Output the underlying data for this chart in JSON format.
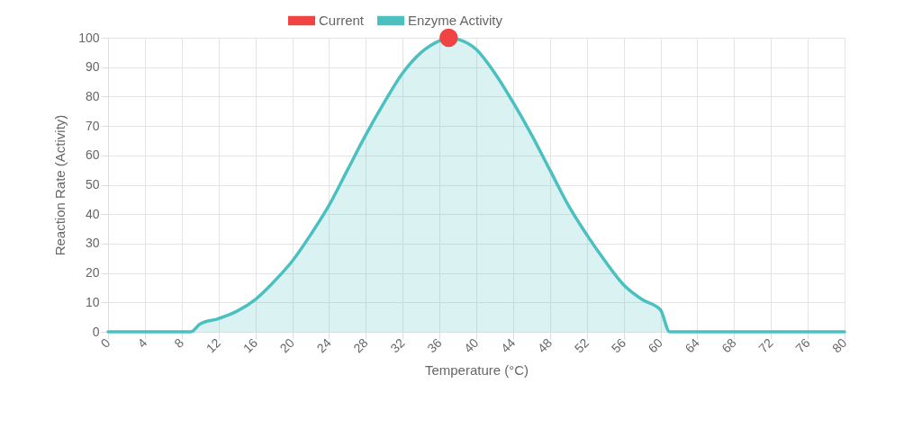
{
  "chart_data": {
    "type": "area",
    "xlabel": "Temperature (°C)",
    "ylabel": "Reaction Rate (Activity)",
    "xlim": [
      0,
      80
    ],
    "xticks": [
      0,
      4,
      8,
      12,
      16,
      20,
      24,
      28,
      32,
      36,
      40,
      44,
      48,
      52,
      56,
      60,
      64,
      68,
      72,
      76,
      80
    ],
    "ylim": [
      0,
      100
    ],
    "yticks": [
      0,
      10,
      20,
      30,
      40,
      50,
      60,
      70,
      80,
      90,
      100
    ],
    "grid": true,
    "legend": "top",
    "series": [
      {
        "name": "Current",
        "type": "scatter",
        "marker": "circle",
        "color": "#f04444",
        "x": [
          37
        ],
        "values": [
          100
        ]
      },
      {
        "name": "Enzyme Activity",
        "color": "#4bc0c0",
        "x": [
          0,
          9,
          10,
          12,
          14,
          16,
          18,
          20,
          22,
          24,
          26,
          28,
          30,
          32,
          34,
          36,
          37,
          38,
          40,
          42,
          44,
          46,
          48,
          50,
          52,
          54,
          56,
          58,
          60,
          61,
          80
        ],
        "values": [
          0,
          0,
          2.7,
          4.5,
          7,
          11,
          17,
          24,
          33,
          43,
          55,
          67,
          78,
          88,
          95,
          99,
          100,
          99.5,
          96,
          88,
          78,
          67,
          55,
          43,
          33,
          24,
          16,
          11,
          7.5,
          0,
          0
        ]
      }
    ]
  }
}
